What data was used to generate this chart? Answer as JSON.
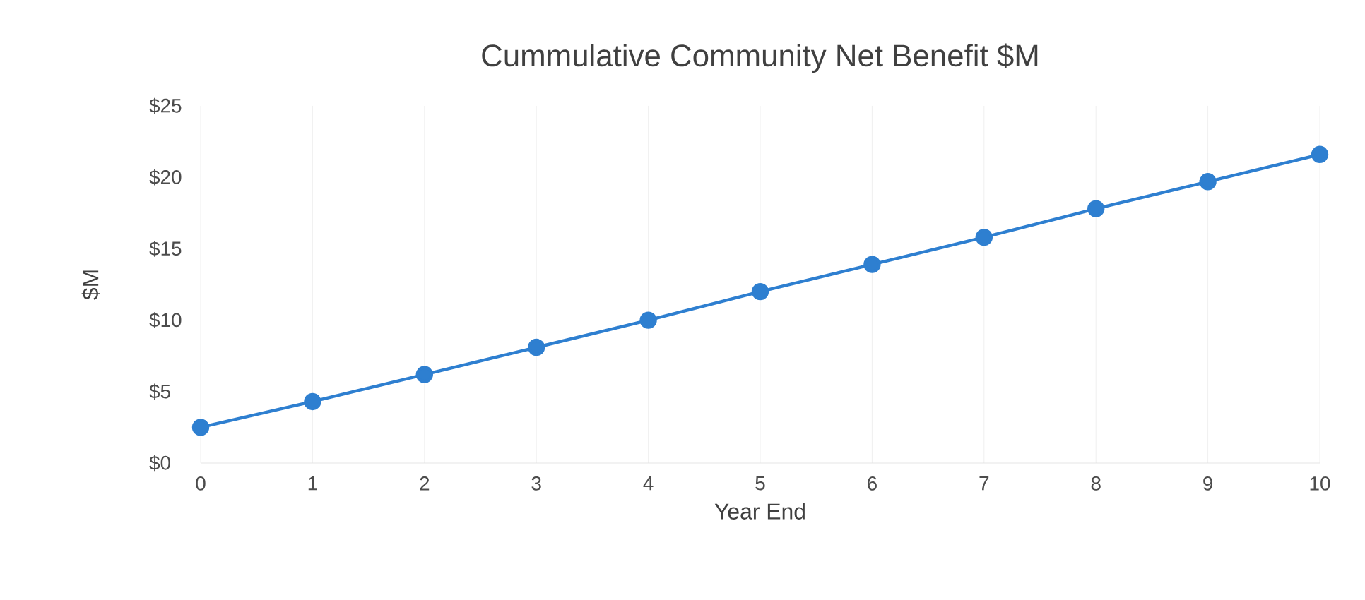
{
  "chart_data": {
    "type": "line",
    "title": "Cummulative Community Net Benefit $M",
    "xlabel": "Year End",
    "ylabel": "$M",
    "x": [
      0,
      1,
      2,
      3,
      4,
      5,
      6,
      7,
      8,
      9,
      10
    ],
    "series": [
      {
        "color": "#2e7fd0",
        "values": [
          2.5,
          4.3,
          6.2,
          8.1,
          10,
          12,
          13.9,
          15.8,
          17.8,
          19.7,
          21.6
        ]
      }
    ],
    "xlim": [
      0,
      10
    ],
    "xticks": [
      0,
      1,
      2,
      3,
      4,
      5,
      6,
      7,
      8,
      9,
      10
    ],
    "ylim": [
      0,
      25
    ],
    "yticks": [
      {
        "value": 0,
        "label": "$0"
      },
      {
        "value": 5,
        "label": "$5"
      },
      {
        "value": 10,
        "label": "$10"
      },
      {
        "value": 15,
        "label": "$15"
      },
      {
        "value": 20,
        "label": "$20"
      },
      {
        "value": 25,
        "label": "$25"
      }
    ],
    "grid": "x",
    "marker": "circle",
    "line_style": "solid"
  }
}
